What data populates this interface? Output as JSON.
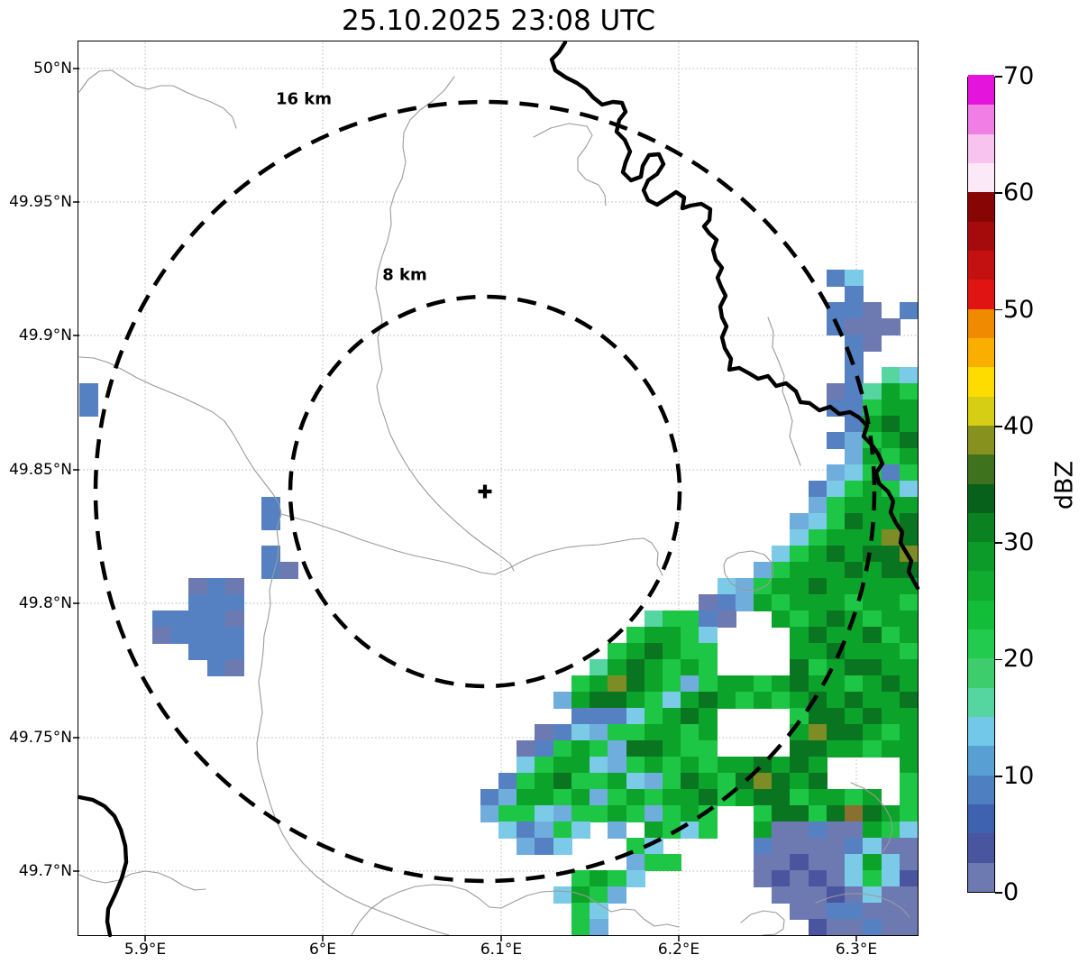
{
  "title": "25.10.2025 23:08 UTC",
  "axes": {
    "x_ticks": [
      "5.9°E",
      "6°E",
      "6.1°E",
      "6.2°E",
      "6.3°E"
    ],
    "y_ticks": [
      "50°N",
      "49.95°N",
      "49.9°N",
      "49.85°N",
      "49.8°N",
      "49.75°N",
      "49.7°N"
    ]
  },
  "rings": {
    "outer_label": "16 km",
    "inner_label": "8 km"
  },
  "colorbar": {
    "label": "dBZ",
    "tick_labels_top_to_bottom": [
      "70",
      "60",
      "50",
      "40",
      "30",
      "20",
      "10",
      "0"
    ],
    "segment_colors_bottom_to_top": [
      "#6D7AB2",
      "#4A55A0",
      "#3F62B0",
      "#4E7FC0",
      "#58A0D4",
      "#72C8E8",
      "#55D5A0",
      "#3ECD6C",
      "#22CB4E",
      "#12BE38",
      "#0FAC2F",
      "#0C9A28",
      "#0A8221",
      "#07611A",
      "#3F721C",
      "#87921E",
      "#D6CE14",
      "#FFDC00",
      "#FAAE00",
      "#F08A00",
      "#E11414",
      "#C31010",
      "#A50B0B",
      "#870505",
      "#FCE9F7",
      "#F8C4EF",
      "#F07EE4",
      "#E414DC"
    ]
  },
  "chart_data": {
    "type": "heatmap",
    "title": "25.10.2025 23:08 UTC",
    "colorbar_label": "dBZ",
    "colorbar_ticks": [
      0,
      10,
      20,
      30,
      40,
      50,
      60,
      70
    ],
    "value_range_dbz": [
      0,
      70
    ],
    "x_tick_labels": [
      "5.9°E",
      "6°E",
      "6.1°E",
      "6.2°E",
      "6.3°E"
    ],
    "y_tick_labels": [
      "50°N",
      "49.95°N",
      "49.9°N",
      "49.85°N",
      "49.8°N",
      "49.75°N",
      "49.7°N"
    ],
    "lon_range_deg_e": [
      5.863,
      6.336
    ],
    "lat_range_deg_n": [
      49.676,
      50.009
    ],
    "legend_position": "right",
    "grid_on": true,
    "range_rings_km": [
      16,
      8
    ],
    "radar_site": {
      "approx_lon_e": 6.09,
      "approx_lat_n": 49.843,
      "marker": "+"
    },
    "grid": {
      "cols": 46,
      "rows": 55,
      "palette": {
        "1": "#6D7AB2",
        "n": "#4A55A0",
        "2": "#5581C2",
        "3": "#6FAEDC",
        "4": "#7BCBE8",
        "5": "#55D5A0",
        "6": "#1DC645",
        "7": "#0CA32B",
        "8": "#0A7520",
        "9": "#7E8C26",
        "a": "#8A7030"
      },
      "dbz_by_code": {
        "1": "0-2.5",
        "n": "2.5-7.5",
        "2": "7.5-10",
        "3": "10-12.5",
        "4": "12.5-15",
        "5": "15-20",
        "6": "20-25",
        "7": "25-30",
        "8": "30-35",
        "9": "35-40",
        "a": "37.5 olive-brown"
      },
      "runs": [
        {
          "r": 14,
          "o": 41,
          "s": "24"
        },
        {
          "r": 15,
          "o": 42,
          "s": "2"
        },
        {
          "r": 16,
          "o": 41,
          "s": "221.2"
        },
        {
          "r": 17,
          "o": 41,
          "s": "2111"
        },
        {
          "r": 18,
          "o": 42,
          "s": "21"
        },
        {
          "r": 19,
          "o": 42,
          "s": "2"
        },
        {
          "r": 20,
          "o": 42,
          "s": "2.54"
        },
        {
          "r": 21,
          "o": 0,
          "s": "2"
        },
        {
          "r": 21,
          "o": 41,
          "s": "12576"
        },
        {
          "r": 22,
          "o": 0,
          "s": "2"
        },
        {
          "r": 22,
          "o": 41,
          "s": "22677"
        },
        {
          "r": 23,
          "o": 42,
          "s": "2787"
        },
        {
          "r": 24,
          "o": 41,
          "s": "23678"
        },
        {
          "r": 25,
          "o": 42,
          "s": "3767"
        },
        {
          "r": 26,
          "o": 41,
          "s": "34626"
        },
        {
          "r": 27,
          "o": 40,
          "s": "246764"
        },
        {
          "r": 28,
          "o": 10,
          "s": "2"
        },
        {
          "r": 28,
          "o": 40,
          "s": "367777"
        },
        {
          "r": 29,
          "o": 10,
          "s": "2"
        },
        {
          "r": 29,
          "o": 39,
          "s": "3468778"
        },
        {
          "r": 30,
          "o": 39,
          "s": "4677798"
        },
        {
          "r": 31,
          "o": 10,
          "s": "2"
        },
        {
          "r": 31,
          "o": 38,
          "s": "46787889"
        },
        {
          "r": 32,
          "o": 10,
          "s": "21"
        },
        {
          "r": 32,
          "o": 37,
          "s": "367778788"
        },
        {
          "r": 33,
          "o": 6,
          "s": "121"
        },
        {
          "r": 33,
          "o": 35,
          "s": "43677877777"
        },
        {
          "r": 34,
          "o": 6,
          "s": "222"
        },
        {
          "r": 34,
          "o": 34,
          "s": "123767776776"
        },
        {
          "r": 35,
          "o": 4,
          "s": "22221"
        },
        {
          "r": 35,
          "o": 31,
          "s": "56621..76787677"
        },
        {
          "r": 36,
          "o": 4,
          "s": "12222"
        },
        {
          "r": 36,
          "o": 30,
          "s": "67764....7877867"
        },
        {
          "r": 37,
          "o": 6,
          "s": "222"
        },
        {
          "r": 37,
          "o": 29,
          "s": "678766....7787776"
        },
        {
          "r": 38,
          "o": 7,
          "s": "21"
        },
        {
          "r": 38,
          "o": 28,
          "s": "5787676....8678877"
        },
        {
          "r": 39,
          "o": 27,
          "s": "6798763677678776787"
        },
        {
          "r": 40,
          "o": 26,
          "s": "37887647876767878778"
        },
        {
          "r": 41,
          "o": 27,
          "s": "22246787....6887877"
        },
        {
          "r": 42,
          "o": 25,
          "s": "1243667767....7988767"
        },
        {
          "r": 43,
          "o": 24,
          "s": "12676388766....8877677"
        },
        {
          "r": 44,
          "o": 24,
          "s": "46774367676778787....7"
        },
        {
          "r": 45,
          "o": 23,
          "s": "267866743687689878....6"
        },
        {
          "r": 46,
          "o": 22,
          "s": "2377673676778678867767.6"
        },
        {
          "r": 47,
          "o": 22,
          "s": "3664366763676..68868a876"
        },
        {
          "r": 48,
          "o": 23,
          "s": "42364.3.7646..711211764"
        },
        {
          "r": 49,
          "o": 24,
          "s": "324...64.....211112411"
        },
        {
          "r": 50,
          "o": 30,
          "s": "366....11n114741"
        },
        {
          "r": 51,
          "o": 27,
          "s": "6764......1n1n1464n"
        },
        {
          "r": 52,
          "o": 26,
          "s": "4763........111n1411"
        },
        {
          "r": 53,
          "o": 27,
          "s": "64..........1122111"
        },
        {
          "r": 54,
          "o": 27,
          "s": "63...........n11211"
        }
      ]
    }
  }
}
